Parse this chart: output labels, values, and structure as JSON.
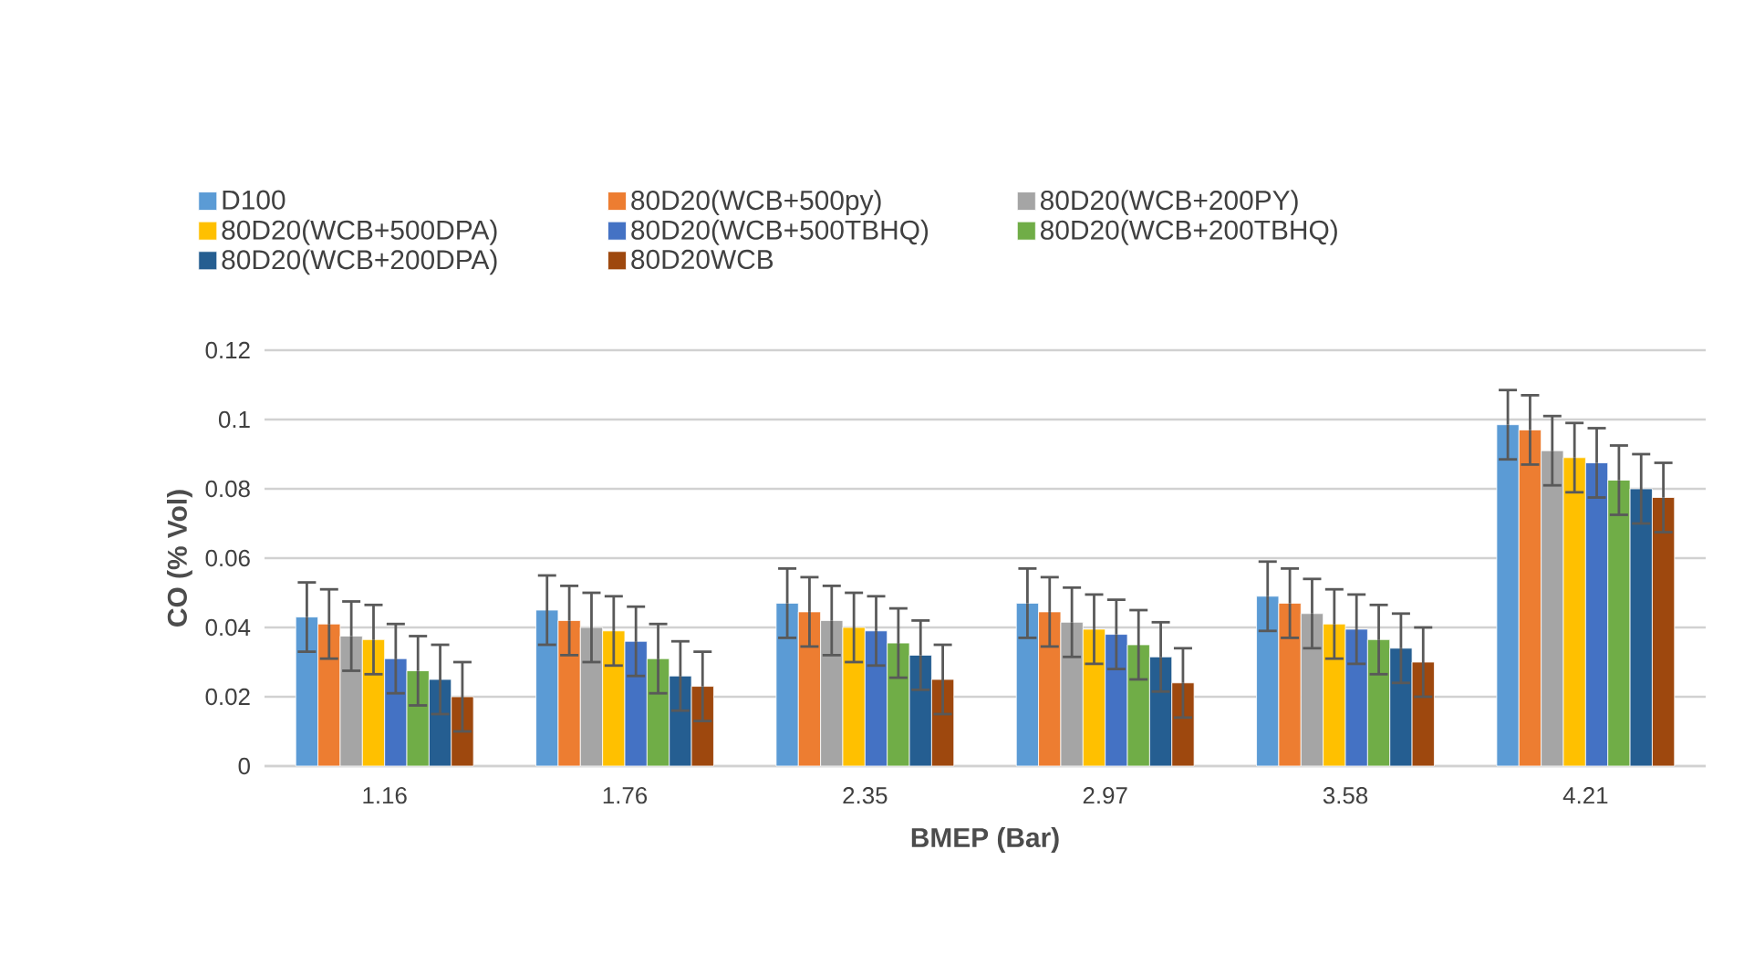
{
  "chart_data": {
    "type": "bar",
    "xlabel": "BMEP (Bar)",
    "ylabel": "CO (% Vol)",
    "categories": [
      "1.16",
      "1.76",
      "2.35",
      "2.97",
      "3.58",
      "4.21"
    ],
    "series": [
      {
        "name": "D100",
        "color": "#5b9bd5",
        "values": [
          0.043,
          0.045,
          0.047,
          0.047,
          0.049,
          0.0985
        ],
        "errors": [
          0.01,
          0.01,
          0.01,
          0.01,
          0.01,
          0.01
        ]
      },
      {
        "name": "80D20(WCB+500py)",
        "color": "#ed7d31",
        "values": [
          0.041,
          0.042,
          0.0445,
          0.0445,
          0.047,
          0.097
        ],
        "errors": [
          0.01,
          0.01,
          0.01,
          0.01,
          0.01,
          0.01
        ]
      },
      {
        "name": "80D20(WCB+200PY)",
        "color": "#a5a5a5",
        "values": [
          0.0375,
          0.04,
          0.042,
          0.0415,
          0.044,
          0.091
        ],
        "errors": [
          0.01,
          0.01,
          0.01,
          0.01,
          0.01,
          0.01
        ]
      },
      {
        "name": "80D20(WCB+500DPA)",
        "color": "#ffc000",
        "values": [
          0.0365,
          0.039,
          0.04,
          0.0395,
          0.041,
          0.089
        ],
        "errors": [
          0.01,
          0.01,
          0.01,
          0.01,
          0.01,
          0.01
        ]
      },
      {
        "name": "80D20(WCB+500TBHQ)",
        "color": "#4472c4",
        "values": [
          0.031,
          0.036,
          0.039,
          0.038,
          0.0395,
          0.0875
        ],
        "errors": [
          0.01,
          0.01,
          0.01,
          0.01,
          0.01,
          0.01
        ]
      },
      {
        "name": "80D20(WCB+200TBHQ)",
        "color": "#70ad47",
        "values": [
          0.0275,
          0.031,
          0.0355,
          0.035,
          0.0365,
          0.0825
        ],
        "errors": [
          0.01,
          0.01,
          0.01,
          0.01,
          0.01,
          0.01
        ]
      },
      {
        "name": "80D20(WCB+200DPA)",
        "color": "#255e91",
        "values": [
          0.025,
          0.026,
          0.032,
          0.0315,
          0.034,
          0.08
        ],
        "errors": [
          0.01,
          0.01,
          0.01,
          0.01,
          0.01,
          0.01
        ]
      },
      {
        "name": "80D20WCB",
        "color": "#9e480e",
        "values": [
          0.02,
          0.023,
          0.025,
          0.024,
          0.03,
          0.0775
        ],
        "errors": [
          0.01,
          0.01,
          0.01,
          0.01,
          0.01,
          0.01
        ]
      }
    ],
    "ylim": [
      0,
      0.12
    ],
    "yticks": [
      0,
      0.02,
      0.04,
      0.06,
      0.08,
      0.1,
      0.12
    ],
    "grid": "y",
    "legend": "top"
  }
}
